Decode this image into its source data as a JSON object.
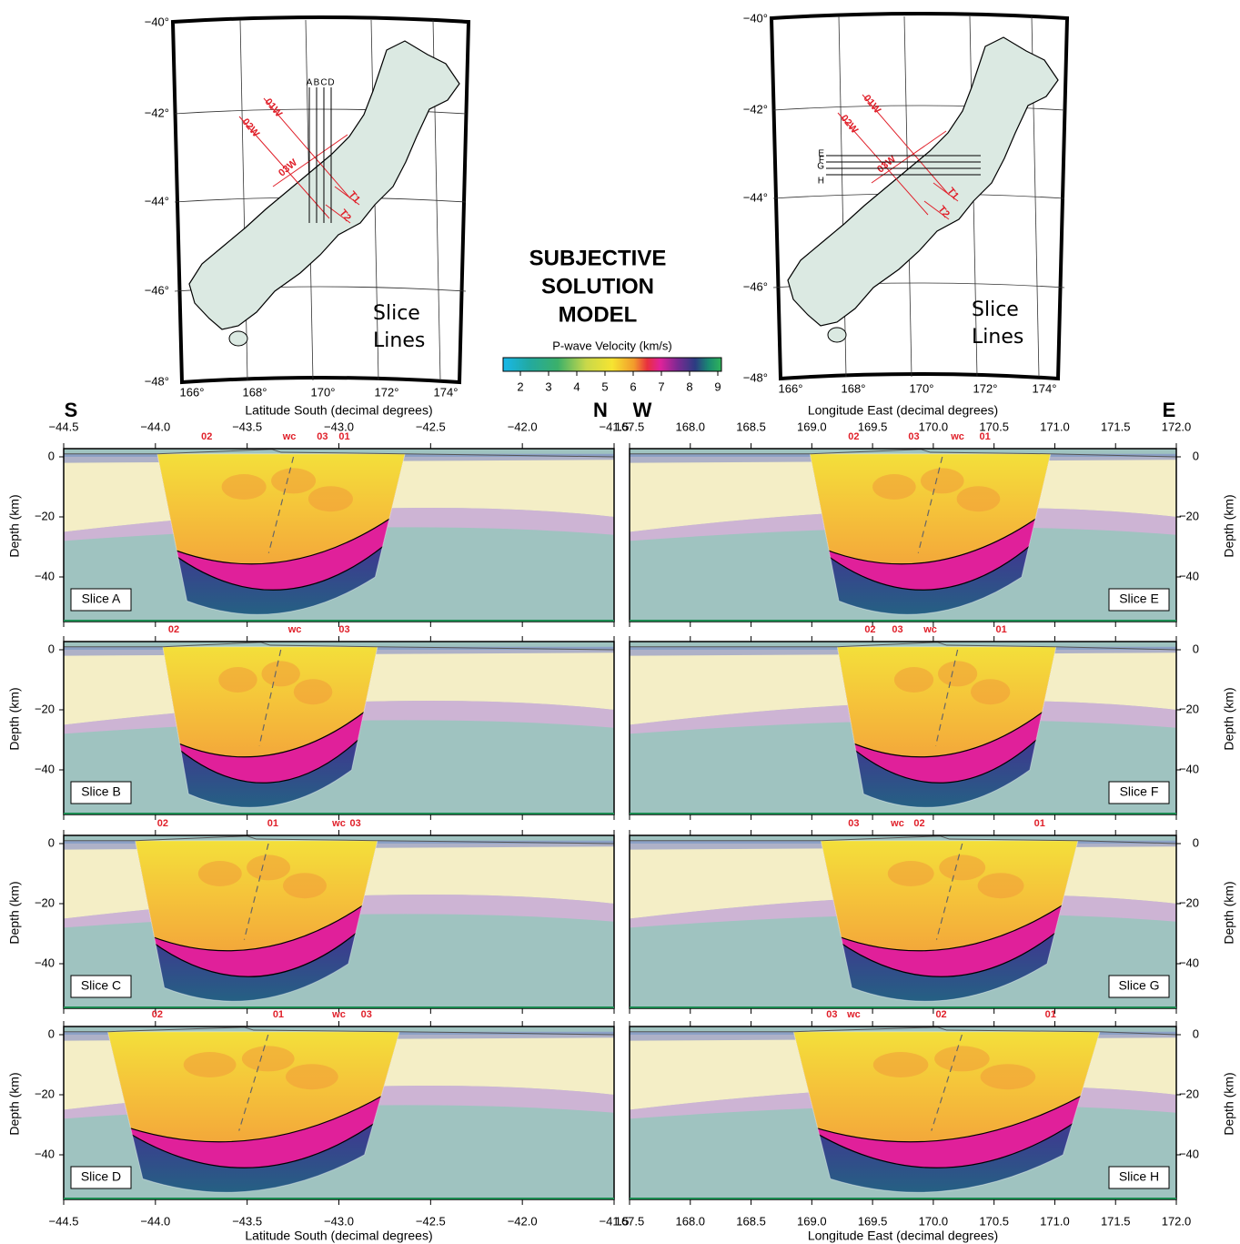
{
  "title": [
    "SUBJECTIVE",
    "SOLUTION",
    "MODEL"
  ],
  "colorbar": {
    "label": "P-wave Velocity (km/s)",
    "ticks": [
      "2",
      "3",
      "4",
      "5",
      "6",
      "7",
      "8",
      "9"
    ]
  },
  "maps": [
    {
      "lat_labels": [
        "−40°",
        "−42°",
        "−44°",
        "−46°",
        "−48°"
      ],
      "lon_labels": [
        "166°",
        "168°",
        "170°",
        "172°",
        "174°"
      ],
      "slice_labels": [
        "A",
        "B",
        "C",
        "D"
      ],
      "line_labels": [
        "01W",
        "02W",
        "03W",
        "T1",
        "T2"
      ],
      "note": [
        "Slice",
        "Lines"
      ]
    },
    {
      "lat_labels": [
        "−40°",
        "−42°",
        "−44°",
        "−46°",
        "−48°"
      ],
      "lon_labels": [
        "166°",
        "168°",
        "170°",
        "172°",
        "174°"
      ],
      "slice_labels": [
        "E",
        "F",
        "G",
        "H"
      ],
      "line_labels": [
        "01W",
        "02W",
        "03W",
        "T1",
        "T2"
      ],
      "note": [
        "Slice",
        "Lines"
      ]
    }
  ],
  "sections": {
    "left": {
      "ends": [
        "S",
        "N"
      ],
      "xticks": [
        "−44.5",
        "−44.0",
        "−43.5",
        "−43.0",
        "−42.5",
        "−42.0",
        "−41.5"
      ],
      "xlabel": "Latitude South (decimal degrees)"
    },
    "right": {
      "ends": [
        "W",
        "E"
      ],
      "xticks": [
        "167.5",
        "168.0",
        "168.5",
        "169.0",
        "169.5",
        "170.0",
        "170.5",
        "171.0",
        "171.5",
        "172.0"
      ],
      "xlabel": "Longitude East (decimal degrees)"
    },
    "ylabel": "Depth (km)",
    "yticks": [
      "0",
      "−20",
      "−40"
    ]
  },
  "panels": [
    {
      "label": "Slice A",
      "markers": [
        "02",
        "wc",
        "03",
        "01"
      ]
    },
    {
      "label": "Slice B",
      "markers": [
        "02",
        "wc",
        "03"
      ]
    },
    {
      "label": "Slice C",
      "markers": [
        "02",
        "01",
        "wc",
        "03"
      ]
    },
    {
      "label": "Slice D",
      "markers": [
        "02",
        "01",
        "wc",
        "03"
      ]
    },
    {
      "label": "Slice E",
      "markers": [
        "02",
        "03",
        "wc",
        "01"
      ]
    },
    {
      "label": "Slice F",
      "markers": [
        "02",
        "03",
        "wc",
        "01"
      ]
    },
    {
      "label": "Slice G",
      "markers": [
        "03",
        "wc",
        "02",
        "01"
      ]
    },
    {
      "label": "Slice H",
      "markers": [
        "03",
        "wc",
        "02",
        "01"
      ]
    }
  ]
}
